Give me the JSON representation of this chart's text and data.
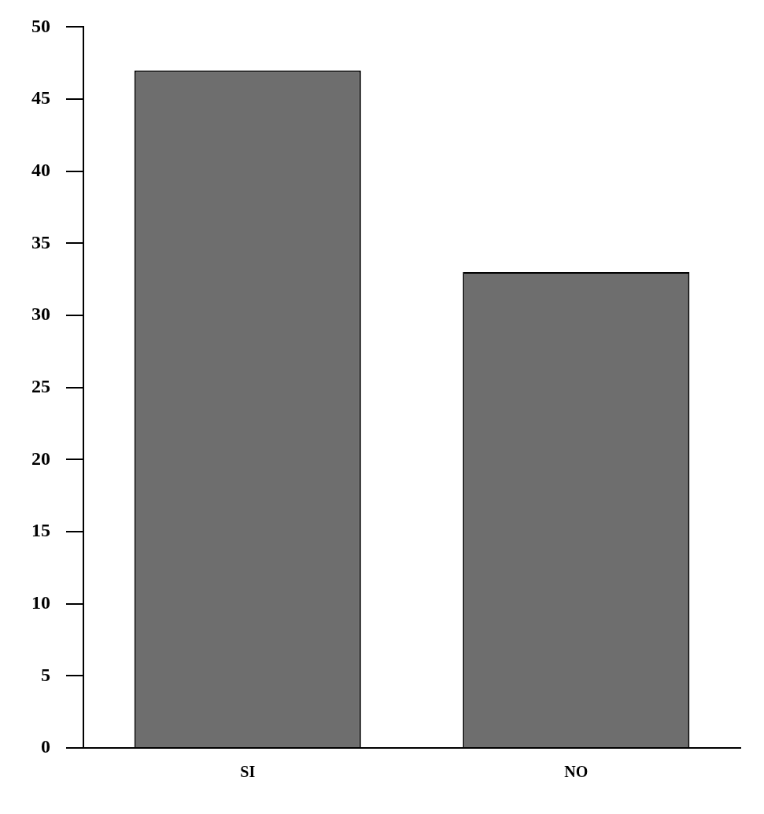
{
  "chart_data": {
    "type": "bar",
    "categories": [
      "SI",
      "NO"
    ],
    "values": [
      47,
      33
    ],
    "color": "#6e6e6e",
    "ylim": [
      0,
      50
    ],
    "yticks": [
      0,
      5,
      10,
      15,
      20,
      25,
      30,
      35,
      40,
      45,
      50
    ],
    "grid": false,
    "legend": false
  }
}
